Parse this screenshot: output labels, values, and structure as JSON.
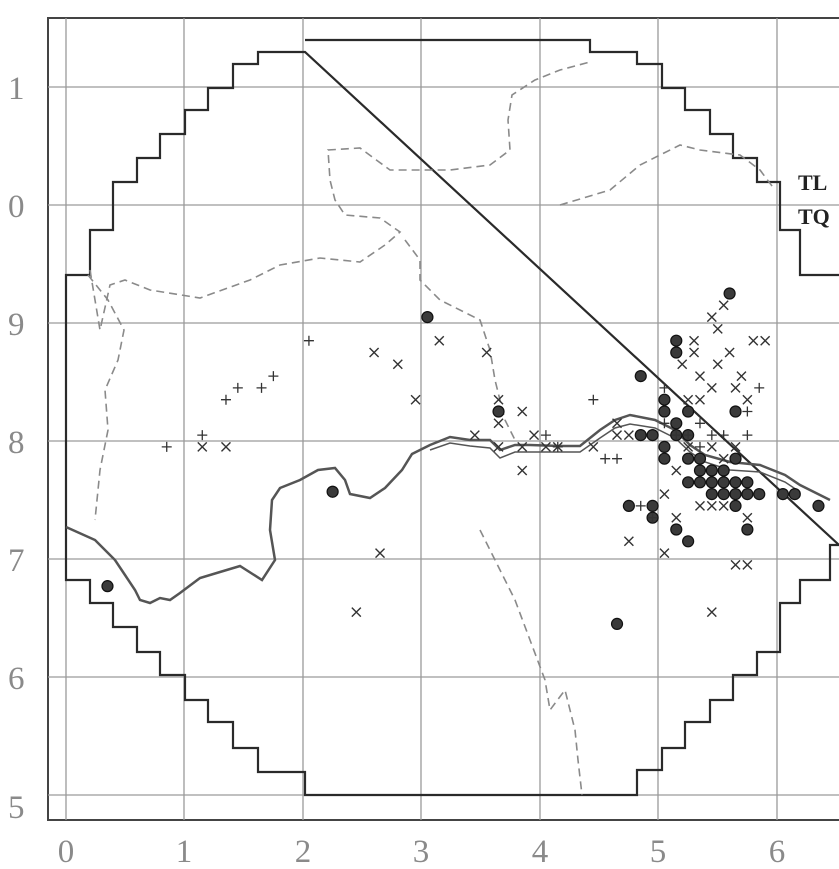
{
  "x_ticks": [
    "0",
    "1",
    "2",
    "3",
    "4",
    "5",
    "6"
  ],
  "y_ticks": [
    "1",
    "0",
    "9",
    "8",
    "7",
    "6",
    "5"
  ],
  "sheet_labels": {
    "north": "TL",
    "south": "TQ"
  },
  "colors": {
    "grid": "#9a9a9a",
    "boundary": "#2a2a2a",
    "river": "#555555",
    "dashed_boundary": "#8a8a8a",
    "marker_dot": "#3a3a3a",
    "marker_cross": "#333333"
  },
  "chart_data": {
    "type": "scatter",
    "title": "",
    "xlabel": "",
    "ylabel": "",
    "grid": true,
    "series": [
      {
        "marker": "dot",
        "points": [
          [
            0.35,
            6.77
          ],
          [
            3.05,
            9.05
          ],
          [
            2.25,
            7.57
          ],
          [
            4.65,
            6.45
          ],
          [
            5.6,
            9.25
          ],
          [
            5.15,
            8.85
          ],
          [
            5.15,
            8.75
          ],
          [
            4.85,
            8.55
          ],
          [
            5.05,
            8.35
          ],
          [
            5.05,
            8.25
          ],
          [
            5.15,
            8.15
          ],
          [
            5.15,
            8.05
          ],
          [
            4.85,
            8.05
          ],
          [
            4.95,
            8.05
          ],
          [
            5.25,
            8.25
          ],
          [
            5.25,
            8.05
          ],
          [
            5.05,
            7.95
          ],
          [
            5.05,
            7.85
          ],
          [
            5.25,
            7.85
          ],
          [
            5.35,
            7.85
          ],
          [
            5.45,
            7.75
          ],
          [
            5.55,
            7.75
          ],
          [
            5.65,
            7.85
          ],
          [
            5.35,
            7.75
          ],
          [
            5.45,
            7.65
          ],
          [
            5.55,
            7.65
          ],
          [
            5.65,
            7.65
          ],
          [
            5.75,
            7.65
          ],
          [
            5.35,
            7.65
          ],
          [
            5.45,
            7.55
          ],
          [
            5.55,
            7.55
          ],
          [
            5.65,
            7.55
          ],
          [
            5.75,
            7.55
          ],
          [
            5.85,
            7.55
          ],
          [
            5.25,
            7.65
          ],
          [
            5.65,
            7.45
          ],
          [
            6.05,
            7.55
          ],
          [
            6.15,
            7.55
          ],
          [
            6.35,
            7.45
          ],
          [
            4.75,
            7.45
          ],
          [
            4.95,
            7.45
          ],
          [
            4.95,
            7.35
          ],
          [
            5.15,
            7.25
          ],
          [
            5.25,
            7.15
          ],
          [
            5.75,
            7.25
          ],
          [
            3.65,
            8.25
          ],
          [
            5.65,
            8.25
          ]
        ]
      },
      {
        "marker": "cross",
        "points": [
          [
            2.65,
            7.05
          ],
          [
            2.45,
            6.55
          ],
          [
            5.45,
            6.55
          ],
          [
            4.75,
            7.15
          ],
          [
            5.05,
            7.05
          ],
          [
            5.65,
            6.95
          ],
          [
            5.75,
            6.95
          ],
          [
            1.15,
            7.95
          ],
          [
            1.35,
            7.95
          ],
          [
            2.6,
            8.75
          ],
          [
            2.8,
            8.65
          ],
          [
            2.95,
            8.35
          ],
          [
            3.15,
            8.85
          ],
          [
            3.55,
            8.75
          ],
          [
            3.65,
            8.35
          ],
          [
            3.65,
            8.15
          ],
          [
            3.85,
            8.25
          ],
          [
            3.85,
            7.75
          ],
          [
            3.45,
            8.05
          ],
          [
            3.65,
            7.95
          ],
          [
            3.85,
            7.95
          ],
          [
            3.95,
            8.05
          ],
          [
            4.05,
            7.95
          ],
          [
            4.15,
            7.95
          ],
          [
            4.45,
            7.95
          ],
          [
            4.65,
            8.05
          ],
          [
            4.65,
            8.15
          ],
          [
            4.75,
            8.05
          ],
          [
            5.2,
            8.65
          ],
          [
            5.3,
            8.75
          ],
          [
            5.35,
            8.55
          ],
          [
            5.45,
            8.45
          ],
          [
            5.5,
            8.65
          ],
          [
            5.6,
            8.75
          ],
          [
            5.7,
            8.55
          ],
          [
            5.75,
            8.35
          ],
          [
            5.8,
            8.85
          ],
          [
            5.9,
            8.85
          ],
          [
            5.5,
            8.95
          ],
          [
            5.55,
            9.15
          ],
          [
            5.45,
            9.05
          ],
          [
            5.3,
            8.85
          ],
          [
            5.65,
            8.45
          ],
          [
            5.25,
            8.35
          ],
          [
            5.35,
            8.35
          ],
          [
            5.45,
            7.95
          ],
          [
            5.55,
            7.85
          ],
          [
            5.65,
            7.95
          ],
          [
            5.15,
            7.75
          ],
          [
            5.25,
            7.95
          ],
          [
            5.05,
            7.55
          ],
          [
            5.15,
            7.35
          ],
          [
            5.35,
            7.45
          ],
          [
            5.75,
            7.35
          ],
          [
            5.45,
            7.45
          ],
          [
            5.55,
            7.45
          ]
        ]
      },
      {
        "marker": "plus",
        "points": [
          [
            0.85,
            7.95
          ],
          [
            1.15,
            8.05
          ],
          [
            1.35,
            8.35
          ],
          [
            1.45,
            8.45
          ],
          [
            1.65,
            8.45
          ],
          [
            1.75,
            8.55
          ],
          [
            2.05,
            8.85
          ],
          [
            4.45,
            8.35
          ],
          [
            4.55,
            7.85
          ],
          [
            4.15,
            7.95
          ],
          [
            4.05,
            8.05
          ],
          [
            5.05,
            8.45
          ],
          [
            5.05,
            8.15
          ],
          [
            5.15,
            8.05
          ],
          [
            5.25,
            8.05
          ],
          [
            5.35,
            8.15
          ],
          [
            5.45,
            8.05
          ],
          [
            5.55,
            8.05
          ],
          [
            5.75,
            8.05
          ],
          [
            5.85,
            8.45
          ],
          [
            5.75,
            8.25
          ],
          [
            5.25,
            8.05
          ],
          [
            4.85,
            7.45
          ],
          [
            4.95,
            7.35
          ],
          [
            4.65,
            7.85
          ],
          [
            5.35,
            7.95
          ]
        ]
      }
    ]
  }
}
